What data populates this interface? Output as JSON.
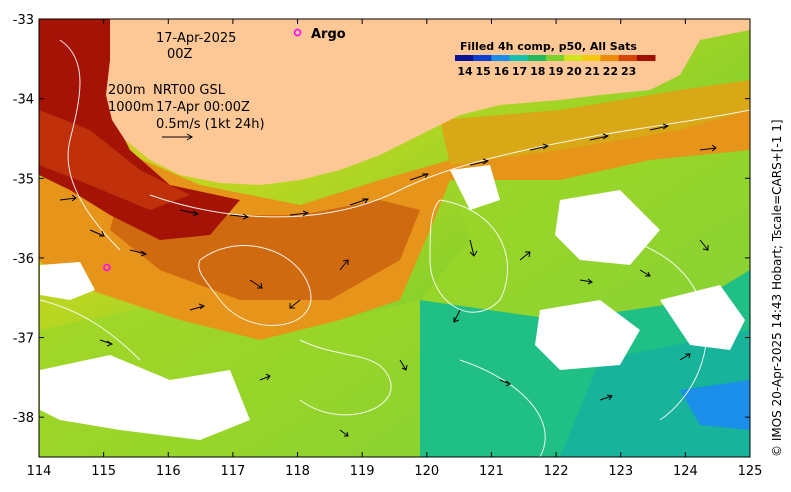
{
  "title": {
    "date": "17-Apr-2025",
    "time": "00Z"
  },
  "annotations": {
    "depth_line1": "200m",
    "depth_line2": "1000m",
    "source": "NRT00 GSL",
    "timestamp": "17-Apr 00:00Z",
    "vector_scale": "0.5m/s (1kt 24h)"
  },
  "argo": {
    "label": "Argo",
    "floats": [
      {
        "lon": 118.0,
        "lat": -33.17
      },
      {
        "lon": 115.05,
        "lat": -36.12
      }
    ]
  },
  "colorbar": {
    "title": "Filled 4h comp, p50, All Sats",
    "ticks": [
      "14",
      "15",
      "16",
      "17",
      "18",
      "19",
      "20",
      "21",
      "22",
      "23"
    ],
    "colors": [
      "#0b1296",
      "#0a3fd6",
      "#1a8ee8",
      "#15c2b0",
      "#22b85c",
      "#7dd12c",
      "#cfe41c",
      "#f5c90f",
      "#ee8a0a",
      "#d64508",
      "#a01005"
    ]
  },
  "credit": "© IMOS 20-Apr-2025 14:43 Hobart; Tscale=CARS+[-1 1]",
  "axes": {
    "x_ticks": [
      "114",
      "115",
      "116",
      "117",
      "118",
      "119",
      "120",
      "121",
      "122",
      "123",
      "124",
      "125"
    ],
    "y_ticks": [
      "-33",
      "-34",
      "-35",
      "-36",
      "-37",
      "-38"
    ],
    "lon_range": [
      114,
      125
    ],
    "lat_range": [
      -38.5,
      -33
    ]
  },
  "colors": {
    "land": "#fdc896",
    "cloud": "#ffffff",
    "contour": "#ffffff",
    "argo": "#ff00ff"
  }
}
